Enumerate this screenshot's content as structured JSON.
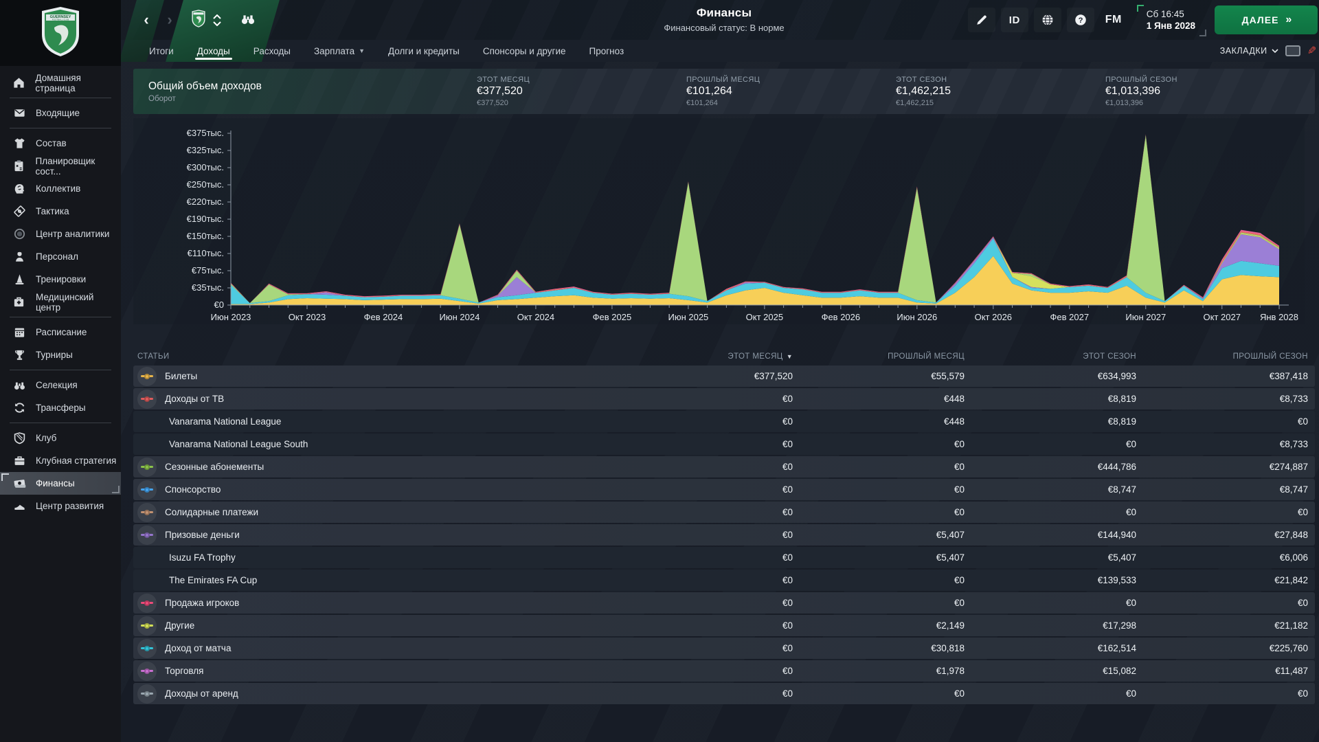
{
  "topbar": {
    "title": "Финансы",
    "subtitle": "Финансовый статус: В норме",
    "id_label": "ID",
    "fm_label": "FM",
    "clock_time": "Сб 16:45",
    "clock_date": "1 Янв 2028",
    "continue_label": "ДАЛЕЕ",
    "continue_chevrons": "»"
  },
  "tabs": [
    {
      "label": "Итоги",
      "active": false,
      "dropdown": false
    },
    {
      "label": "Доходы",
      "active": true,
      "dropdown": false
    },
    {
      "label": "Расходы",
      "active": false,
      "dropdown": false
    },
    {
      "label": "Зарплата",
      "active": false,
      "dropdown": true
    },
    {
      "label": "Долги и кредиты",
      "active": false,
      "dropdown": false
    },
    {
      "label": "Спонсоры и другие",
      "active": false,
      "dropdown": false
    },
    {
      "label": "Прогноз",
      "active": false,
      "dropdown": false
    }
  ],
  "bookmarks_label": "ЗАКЛАДКИ",
  "summary": {
    "title": "Общий объем доходов",
    "subtitle": "Оборот",
    "columns": [
      {
        "label": "ЭТОТ МЕСЯЦ",
        "value": "€377,520",
        "sub": "€377,520"
      },
      {
        "label": "ПРОШЛЫЙ МЕСЯЦ",
        "value": "€101,264",
        "sub": "€101,264"
      },
      {
        "label": "ЭТОТ СЕЗОН",
        "value": "€1,462,215",
        "sub": "€1,462,215"
      },
      {
        "label": "ПРОШЛЫЙ СЕЗОН",
        "value": "€1,013,396",
        "sub": "€1,013,396"
      }
    ]
  },
  "chart_data": {
    "type": "area",
    "stacked": true,
    "unit": "EUR thousands per month",
    "x_start": "Июн 2023",
    "x_end": "Янв 2028",
    "x_labels": [
      "Июн 2023",
      "Окт 2023",
      "Фев 2024",
      "Июн 2024",
      "Окт 2024",
      "Фев 2025",
      "Июн 2025",
      "Окт 2025",
      "Фев 2026",
      "Июн 2026",
      "Окт 2026",
      "Фев 2027",
      "Июн 2027",
      "Окт 2027",
      "Янв 2028"
    ],
    "x_label_month_index": [
      0,
      4,
      8,
      12,
      16,
      20,
      24,
      28,
      32,
      36,
      40,
      44,
      48,
      52,
      55
    ],
    "months_count": 56,
    "y_ticks": {
      "values": [
        0,
        35,
        75,
        110,
        150,
        190,
        220,
        250,
        300,
        325,
        375
      ],
      "labels": [
        "€0",
        "€35тыс.",
        "€75тыс.",
        "€110тыс.",
        "€150тыс.",
        "€190тыс.",
        "€220тыс.",
        "€250тыс.",
        "€300тыс.",
        "€325тыс.",
        "€375тыс."
      ]
    },
    "series": [
      {
        "name": "Билеты",
        "color": "#f7cf58",
        "values": [
          2,
          2,
          5,
          12,
          14,
          13,
          12,
          10,
          11,
          12,
          12,
          13,
          8,
          3,
          10,
          12,
          15,
          18,
          20,
          15,
          13,
          14,
          13,
          14,
          10,
          5,
          20,
          30,
          35,
          25,
          20,
          15,
          15,
          18,
          15,
          15,
          5,
          3,
          25,
          60,
          105,
          45,
          30,
          25,
          25,
          28,
          25,
          40,
          15,
          5,
          30,
          8,
          55,
          65,
          62,
          60
        ]
      },
      {
        "name": "Доход от матча",
        "color": "#4ecbe0",
        "values": [
          40,
          2,
          3,
          8,
          8,
          8,
          7,
          6,
          6,
          7,
          7,
          7,
          5,
          2,
          6,
          8,
          10,
          12,
          15,
          10,
          8,
          9,
          8,
          9,
          8,
          3,
          10,
          15,
          12,
          10,
          12,
          10,
          10,
          12,
          10,
          10,
          5,
          2,
          15,
          30,
          40,
          15,
          5,
          8,
          12,
          12,
          10,
          20,
          10,
          3,
          10,
          4,
          25,
          30,
          28,
          25
        ]
      },
      {
        "name": "Призовые деньги",
        "color": "#9b7fd6",
        "values": [
          0,
          0,
          0,
          0,
          0,
          5,
          0,
          0,
          0,
          0,
          0,
          0,
          0,
          0,
          3,
          40,
          0,
          0,
          0,
          0,
          0,
          0,
          0,
          0,
          0,
          0,
          0,
          3,
          0,
          0,
          0,
          0,
          0,
          0,
          0,
          0,
          0,
          0,
          5,
          5,
          3,
          0,
          2,
          0,
          0,
          0,
          0,
          0,
          0,
          0,
          0,
          2,
          10,
          60,
          58,
          35
        ]
      },
      {
        "name": "Другие",
        "color": "#d6e05e",
        "values": [
          0,
          0,
          0,
          0,
          0,
          0,
          0,
          0,
          0,
          0,
          0,
          0,
          0,
          0,
          0,
          0,
          0,
          0,
          0,
          0,
          0,
          0,
          0,
          0,
          0,
          0,
          0,
          0,
          0,
          0,
          0,
          0,
          0,
          0,
          0,
          0,
          0,
          0,
          0,
          0,
          0,
          10,
          25,
          10,
          0,
          0,
          0,
          0,
          0,
          0,
          0,
          0,
          2,
          2,
          2,
          2
        ]
      },
      {
        "name": "Сезонные абонементы",
        "color": "#a8d77d",
        "values": [
          3,
          0,
          35,
          2,
          0,
          0,
          0,
          0,
          0,
          0,
          0,
          0,
          165,
          0,
          0,
          15,
          0,
          0,
          0,
          0,
          0,
          0,
          0,
          0,
          240,
          0,
          0,
          0,
          0,
          0,
          0,
          0,
          0,
          0,
          0,
          0,
          235,
          0,
          0,
          0,
          0,
          0,
          5,
          0,
          0,
          0,
          0,
          0,
          345,
          0,
          0,
          0,
          0,
          2,
          2,
          2
        ]
      },
      {
        "name": "Доходы от ТВ",
        "color": "#ec7063",
        "values": [
          1,
          0,
          1,
          1,
          1,
          1,
          1,
          1,
          1,
          1,
          1,
          1,
          1,
          0,
          1,
          1,
          1,
          2,
          1,
          1,
          1,
          1,
          1,
          1,
          1,
          0,
          2,
          1,
          1,
          1,
          1,
          1,
          1,
          1,
          1,
          1,
          1,
          0,
          1,
          1,
          1,
          1,
          1,
          1,
          1,
          2,
          1,
          3,
          1,
          0,
          1,
          1,
          3,
          3,
          3,
          2
        ]
      },
      {
        "name": "Продажа игроков",
        "color": "#f0639a",
        "values": [
          1,
          0,
          1,
          1,
          1,
          1,
          1,
          1,
          1,
          1,
          1,
          1,
          1,
          0,
          1,
          1,
          1,
          1,
          2,
          1,
          1,
          1,
          1,
          1,
          1,
          0,
          1,
          1,
          1,
          1,
          1,
          1,
          1,
          1,
          1,
          1,
          1,
          0,
          1,
          1,
          1,
          1,
          1,
          1,
          1,
          1,
          1,
          1,
          1,
          0,
          1,
          1,
          3,
          3,
          3,
          2
        ]
      }
    ]
  },
  "table": {
    "columns": [
      "СТАТЬИ",
      "ЭТОТ МЕСЯЦ",
      "ПРОШЛЫЙ МЕСЯЦ",
      "ЭТОТ СЕЗОН",
      "ПРОШЛЫЙ СЕЗОН"
    ],
    "sorted_column": "ЭТОТ МЕСЯЦ",
    "rows": [
      {
        "label": "Билеты",
        "color": "#e8b54a",
        "sub": false,
        "values": [
          "€377,520",
          "€55,579",
          "€634,993",
          "€387,418"
        ]
      },
      {
        "label": "Доходы от ТВ",
        "color": "#e05c5c",
        "sub": false,
        "values": [
          "€0",
          "€448",
          "€8,819",
          "€8,733"
        ]
      },
      {
        "label": "Vanarama National League",
        "sub": true,
        "values": [
          "€0",
          "€448",
          "€8,819",
          "€0"
        ]
      },
      {
        "label": "Vanarama National League South",
        "sub": true,
        "values": [
          "€0",
          "€0",
          "€0",
          "€8,733"
        ]
      },
      {
        "label": "Сезонные абонементы",
        "color": "#8bc34a",
        "sub": false,
        "values": [
          "€0",
          "€0",
          "€444,786",
          "€274,887"
        ]
      },
      {
        "label": "Спонсорство",
        "color": "#45a4f0",
        "sub": false,
        "values": [
          "€0",
          "€0",
          "€8,747",
          "€8,747"
        ]
      },
      {
        "label": "Солидарные платежи",
        "color": "#c29272",
        "sub": false,
        "values": [
          "€0",
          "€0",
          "€0",
          "€0"
        ]
      },
      {
        "label": "Призовые деньги",
        "color": "#9575cd",
        "sub": false,
        "values": [
          "€0",
          "€5,407",
          "€144,940",
          "€27,848"
        ]
      },
      {
        "label": "Isuzu FA Trophy",
        "sub": true,
        "values": [
          "€0",
          "€5,407",
          "€5,407",
          "€6,006"
        ]
      },
      {
        "label": "The Emirates FA Cup",
        "sub": true,
        "values": [
          "€0",
          "€0",
          "€139,533",
          "€21,842"
        ]
      },
      {
        "label": "Продажа игроков",
        "color": "#ec4b7a",
        "sub": false,
        "values": [
          "€0",
          "€0",
          "€0",
          "€0"
        ]
      },
      {
        "label": "Другие",
        "color": "#d4e157",
        "sub": false,
        "values": [
          "€0",
          "€2,149",
          "€17,298",
          "€21,182"
        ]
      },
      {
        "label": "Доход от матча",
        "color": "#33c3d8",
        "sub": false,
        "values": [
          "€0",
          "€30,818",
          "€162,514",
          "€225,760"
        ]
      },
      {
        "label": "Торговля",
        "color": "#c96fd1",
        "sub": false,
        "values": [
          "€0",
          "€1,978",
          "€15,082",
          "€11,487"
        ]
      },
      {
        "label": "Доходы от аренд",
        "color": "#9aa7b0",
        "sub": false,
        "values": [
          "€0",
          "€0",
          "€0",
          "€0"
        ]
      }
    ]
  },
  "sidebar": {
    "items": [
      {
        "label": "Домашняя страница",
        "icon": "home-icon",
        "divider_after": true,
        "selected": false
      },
      {
        "label": "Входящие",
        "icon": "inbox-icon",
        "divider_after": true,
        "selected": false
      },
      {
        "label": "Состав",
        "icon": "shirt-icon",
        "divider_after": false,
        "selected": false
      },
      {
        "label": "Планировщик сост...",
        "icon": "clipboard-icon",
        "divider_after": false,
        "selected": false
      },
      {
        "label": "Коллектив",
        "icon": "mind-icon",
        "divider_after": false,
        "selected": false
      },
      {
        "label": "Тактика",
        "icon": "tactics-icon",
        "divider_after": false,
        "selected": false
      },
      {
        "label": "Центр аналитики",
        "icon": "analytics-icon",
        "divider_after": false,
        "selected": false
      },
      {
        "label": "Персонал",
        "icon": "staff-icon",
        "divider_after": false,
        "selected": false
      },
      {
        "label": "Тренировки",
        "icon": "training-icon",
        "divider_after": false,
        "selected": false
      },
      {
        "label": "Медицинский центр",
        "icon": "medical-icon",
        "divider_after": true,
        "selected": false
      },
      {
        "label": "Расписание",
        "icon": "calendar-icon",
        "divider_after": false,
        "selected": false
      },
      {
        "label": "Турниры",
        "icon": "trophy-icon",
        "divider_after": true,
        "selected": false
      },
      {
        "label": "Селекция",
        "icon": "binoculars-icon",
        "divider_after": false,
        "selected": false
      },
      {
        "label": "Трансферы",
        "icon": "transfers-icon",
        "divider_after": true,
        "selected": false
      },
      {
        "label": "Клуб",
        "icon": "club-shield-icon",
        "divider_after": false,
        "selected": false
      },
      {
        "label": "Клубная стратегия",
        "icon": "briefcase-icon",
        "divider_after": false,
        "selected": false
      },
      {
        "label": "Финансы",
        "icon": "money-icon",
        "divider_after": false,
        "selected": true
      },
      {
        "label": "Центр развития",
        "icon": "development-icon",
        "divider_after": false,
        "selected": false
      }
    ]
  }
}
